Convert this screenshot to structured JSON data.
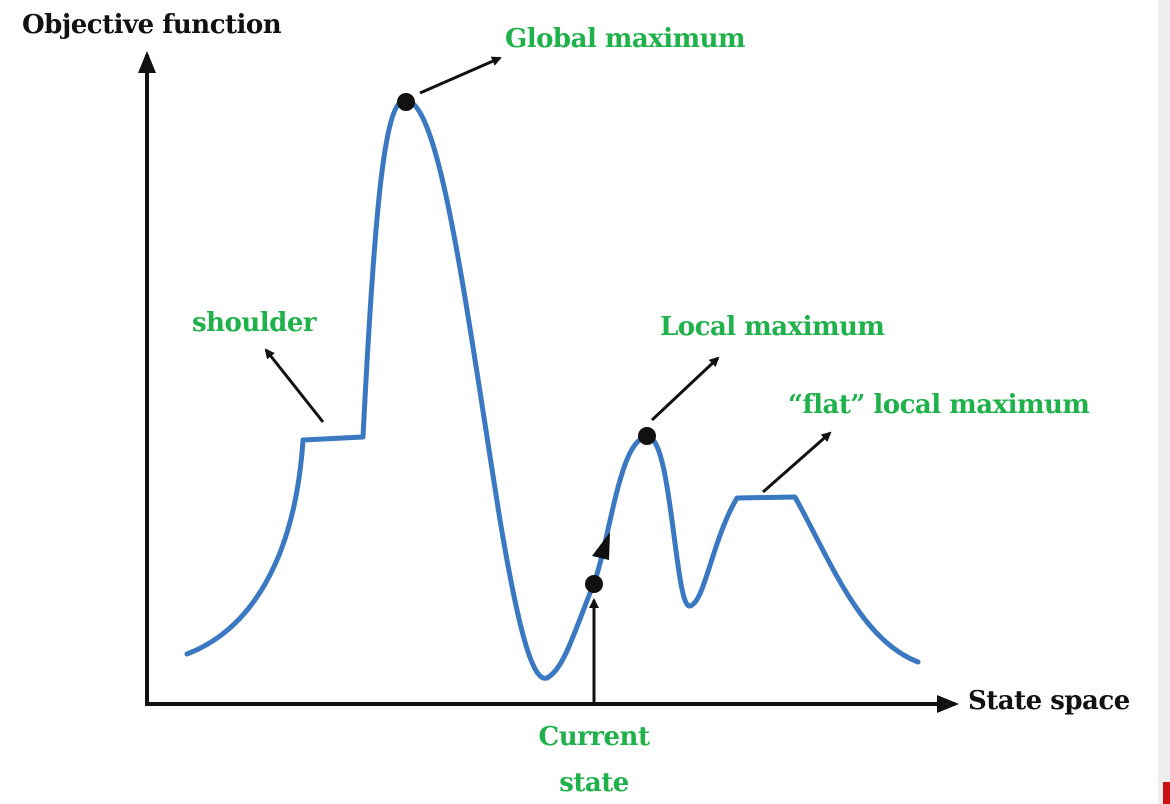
{
  "axes": {
    "y_label": "Objective function",
    "x_label": "State space"
  },
  "annotations": {
    "global_maximum": "Global maximum",
    "shoulder": "shoulder",
    "local_maximum": "Local maximum",
    "flat_local_maximum": "“flat” local maximum",
    "current_state_line1": "Current",
    "current_state_line2": "state"
  },
  "colors": {
    "curve": "#3b78c2",
    "labels": "#1fb14a",
    "axes": "#111111"
  }
}
